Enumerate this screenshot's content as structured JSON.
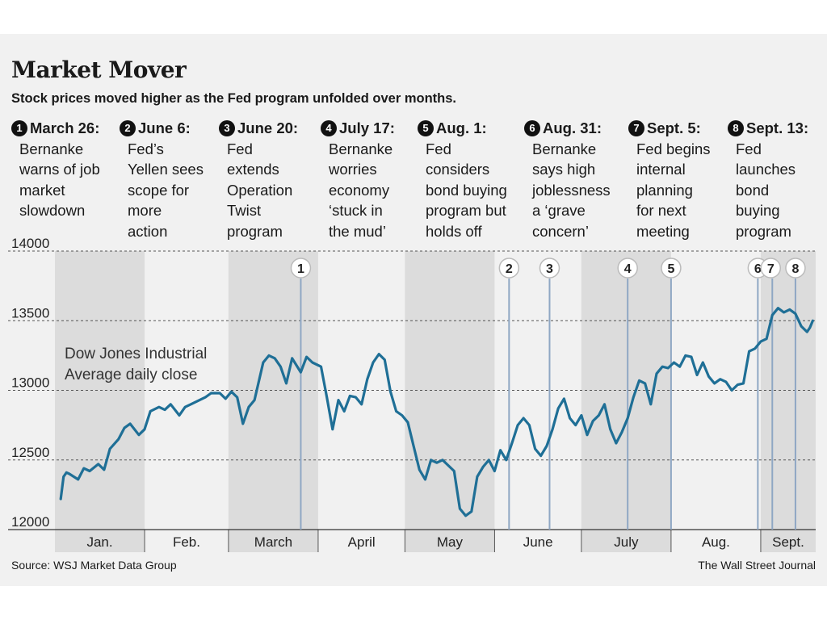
{
  "title": "Market Mover",
  "subtitle": "Stock prices moved higher as the Fed program unfolded over months.",
  "events": [
    {
      "num": "1",
      "date": "March 26:",
      "text": "Bernanke\nwarns of job\nmarket\nslowdown"
    },
    {
      "num": "2",
      "date": "June 6:",
      "text": "Fed’s\nYellen sees\nscope for\nmore\naction"
    },
    {
      "num": "3",
      "date": "June 20:",
      "text": "Fed\nextends\nOperation\nTwist\nprogram"
    },
    {
      "num": "4",
      "date": "July 17:",
      "text": "Bernanke\nworries\neconomy\n‘stuck in\nthe mud’"
    },
    {
      "num": "5",
      "date": "Aug. 1:",
      "text": "Fed\nconsiders\nbond buying\nprogram but\nholds off"
    },
    {
      "num": "6",
      "date": "Aug. 31:",
      "text": "Bernanke\nsays high\njoblessness\na ‘grave\nconcern’"
    },
    {
      "num": "7",
      "date": "Sept. 5:",
      "text": "Fed begins\ninternal\nplanning\nfor next\nmeeting"
    },
    {
      "num": "8",
      "date": "Sept. 13:",
      "text": "Fed\nlaunches\nbond\nbuying\nprogram"
    }
  ],
  "source": "Source: WSJ Market Data Group",
  "credit": "The Wall Street Journal",
  "colors": {
    "line": "#1f6f96",
    "marker_line": "#8fa7c4",
    "month_band": "#dcdcdc",
    "panel": "#f1f1f1"
  },
  "chart_data": {
    "type": "line",
    "title": "Market Mover",
    "subtitle": "Stock prices moved higher as the Fed program unfolded over months.",
    "xlabel": "",
    "ylabel": "",
    "series_label": "Dow Jones Industrial\nAverage daily close",
    "ylim": [
      12000,
      14000
    ],
    "yticks": [
      12000,
      12500,
      13000,
      13500,
      14000
    ],
    "xlim": [
      "2012-01-01",
      "2012-09-19"
    ],
    "months": [
      {
        "label": "Jan.",
        "start": "2012-01-01",
        "end": "2012-01-31",
        "shaded": true
      },
      {
        "label": "Feb.",
        "start": "2012-02-01",
        "end": "2012-02-29",
        "shaded": false
      },
      {
        "label": "March",
        "start": "2012-03-01",
        "end": "2012-03-31",
        "shaded": true
      },
      {
        "label": "April",
        "start": "2012-04-01",
        "end": "2012-04-30",
        "shaded": false
      },
      {
        "label": "May",
        "start": "2012-05-01",
        "end": "2012-05-31",
        "shaded": true
      },
      {
        "label": "June",
        "start": "2012-06-01",
        "end": "2012-06-30",
        "shaded": false
      },
      {
        "label": "July",
        "start": "2012-07-01",
        "end": "2012-07-31",
        "shaded": true
      },
      {
        "label": "Aug.",
        "start": "2012-08-01",
        "end": "2012-08-31",
        "shaded": false
      },
      {
        "label": "Sept.",
        "start": "2012-09-01",
        "end": "2012-09-19",
        "shaded": true
      }
    ],
    "markers": [
      {
        "label": "1",
        "date": "2012-03-26"
      },
      {
        "label": "2",
        "date": "2012-06-06"
      },
      {
        "label": "3",
        "date": "2012-06-20"
      },
      {
        "label": "4",
        "date": "2012-07-17"
      },
      {
        "label": "5",
        "date": "2012-08-01"
      },
      {
        "label": "6",
        "date": "2012-08-31"
      },
      {
        "label": "7",
        "date": "2012-09-05"
      },
      {
        "label": "8",
        "date": "2012-09-13"
      }
    ],
    "series": [
      {
        "x": [
          "2012-01-03",
          "2012-01-04",
          "2012-01-05",
          "2012-01-06",
          "2012-01-09",
          "2012-01-11",
          "2012-01-13",
          "2012-01-16",
          "2012-01-18",
          "2012-01-20",
          "2012-01-23",
          "2012-01-25",
          "2012-01-27",
          "2012-01-30",
          "2012-02-01",
          "2012-02-03",
          "2012-02-06",
          "2012-02-08",
          "2012-02-10",
          "2012-02-13",
          "2012-02-15",
          "2012-02-17",
          "2012-02-20",
          "2012-02-22",
          "2012-02-24",
          "2012-02-27",
          "2012-02-29",
          "2012-03-02",
          "2012-03-04",
          "2012-03-06",
          "2012-03-08",
          "2012-03-10",
          "2012-03-13",
          "2012-03-15",
          "2012-03-17",
          "2012-03-19",
          "2012-03-21",
          "2012-03-23",
          "2012-03-26",
          "2012-03-28",
          "2012-03-30",
          "2012-04-02",
          "2012-04-04",
          "2012-04-06",
          "2012-04-08",
          "2012-04-10",
          "2012-04-12",
          "2012-04-14",
          "2012-04-16",
          "2012-04-18",
          "2012-04-20",
          "2012-04-22",
          "2012-04-24",
          "2012-04-26",
          "2012-04-28",
          "2012-04-30",
          "2012-05-02",
          "2012-05-04",
          "2012-05-06",
          "2012-05-08",
          "2012-05-10",
          "2012-05-12",
          "2012-05-14",
          "2012-05-16",
          "2012-05-18",
          "2012-05-20",
          "2012-05-22",
          "2012-05-24",
          "2012-05-26",
          "2012-05-28",
          "2012-05-30",
          "2012-06-01",
          "2012-06-03",
          "2012-06-05",
          "2012-06-07",
          "2012-06-09",
          "2012-06-11",
          "2012-06-13",
          "2012-06-15",
          "2012-06-17",
          "2012-06-19",
          "2012-06-21",
          "2012-06-23",
          "2012-06-25",
          "2012-06-27",
          "2012-06-29",
          "2012-07-01",
          "2012-07-03",
          "2012-07-05",
          "2012-07-07",
          "2012-07-09",
          "2012-07-11",
          "2012-07-13",
          "2012-07-15",
          "2012-07-17",
          "2012-07-19",
          "2012-07-21",
          "2012-07-23",
          "2012-07-25",
          "2012-07-27",
          "2012-07-29",
          "2012-07-31",
          "2012-08-02",
          "2012-08-04",
          "2012-08-06",
          "2012-08-08",
          "2012-08-10",
          "2012-08-12",
          "2012-08-14",
          "2012-08-16",
          "2012-08-18",
          "2012-08-20",
          "2012-08-22",
          "2012-08-24",
          "2012-08-26",
          "2012-08-28",
          "2012-08-30",
          "2012-09-01",
          "2012-09-03",
          "2012-09-05",
          "2012-09-07",
          "2012-09-09",
          "2012-09-11",
          "2012-09-13",
          "2012-09-15",
          "2012-09-17",
          "2012-09-18",
          "2012-09-19"
        ],
        "values": [
          12220,
          12380,
          12410,
          12400,
          12360,
          12440,
          12420,
          12470,
          12430,
          12580,
          12650,
          12730,
          12760,
          12680,
          12720,
          12850,
          12880,
          12860,
          12900,
          12820,
          12880,
          12900,
          12930,
          12950,
          12980,
          12980,
          12940,
          12990,
          12950,
          12760,
          12880,
          12930,
          13200,
          13250,
          13230,
          13170,
          13050,
          13230,
          13130,
          13240,
          13200,
          13170,
          12950,
          12720,
          12930,
          12850,
          12960,
          12950,
          12900,
          13080,
          13200,
          13260,
          13220,
          12990,
          12850,
          12820,
          12770,
          12600,
          12430,
          12360,
          12500,
          12480,
          12500,
          12460,
          12420,
          12150,
          12100,
          12130,
          12380,
          12450,
          12500,
          12420,
          12570,
          12500,
          12620,
          12750,
          12800,
          12750,
          12580,
          12530,
          12600,
          12720,
          12870,
          12940,
          12800,
          12750,
          12820,
          12680,
          12780,
          12820,
          12900,
          12720,
          12620,
          12700,
          12800,
          12950,
          13070,
          13050,
          12900,
          13120,
          13170,
          13160,
          13200,
          13170,
          13250,
          13240,
          13110,
          13200,
          13100,
          13050,
          13080,
          13060,
          13000,
          13040,
          13050,
          13280,
          13300,
          13350,
          13370,
          13540,
          13590,
          13560,
          13580,
          13550,
          13460,
          13420,
          13450,
          13500
        ]
      }
    ]
  }
}
